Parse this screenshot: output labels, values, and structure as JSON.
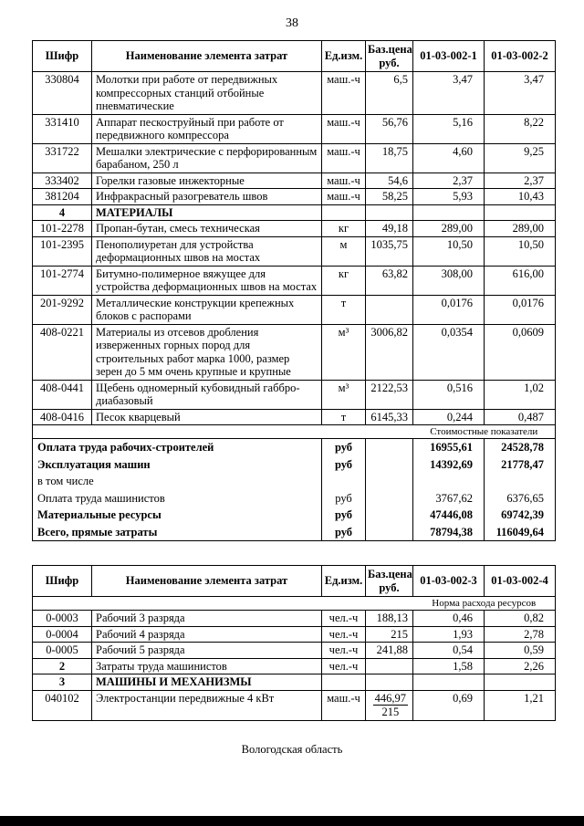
{
  "page_number": "38",
  "footer": "Вологодская область",
  "table1": {
    "headers": [
      "Шифр",
      "Наименование элемента затрат",
      "Ед.изм.",
      "Баз.цена\nруб.",
      "01-03-002-1",
      "01-03-002-2"
    ],
    "rows": [
      {
        "code": "330804",
        "name": "Молотки при работе от передвижных компрессорных станций отбойные пневматические",
        "unit": "маш.-ч",
        "price": "6,5",
        "v1": "3,47",
        "v2": "3,47"
      },
      {
        "code": "331410",
        "name": "Аппарат пескоструйный при работе от передвижного компрессора",
        "unit": "маш.-ч",
        "price": "56,76",
        "v1": "5,16",
        "v2": "8,22"
      },
      {
        "code": "331722",
        "name": "Мешалки электрические с перфорированным барабаном, 250 л",
        "unit": "маш.-ч",
        "price": "18,75",
        "v1": "4,60",
        "v2": "9,25"
      },
      {
        "code": "333402",
        "name": "Горелки газовые инжекторные",
        "unit": "маш.-ч",
        "price": "54,6",
        "v1": "2,37",
        "v2": "2,37"
      },
      {
        "code": "381204",
        "name": "Инфракрасный разогреватель швов",
        "unit": "маш.-ч",
        "price": "58,25",
        "v1": "5,93",
        "v2": "10,43"
      },
      {
        "code": "4",
        "name": "МАТЕРИАЛЫ",
        "unit": "",
        "price": "",
        "v1": "",
        "v2": "",
        "bold": true
      },
      {
        "code": "101-2278",
        "name": "Пропан-бутан, смесь техническая",
        "unit": "кг",
        "price": "49,18",
        "v1": "289,00",
        "v2": "289,00"
      },
      {
        "code": "101-2395",
        "name": "Пенополиуретан для устройства деформационных швов на мостах",
        "unit": "м",
        "price": "1035,75",
        "v1": "10,50",
        "v2": "10,50"
      },
      {
        "code": "101-2774",
        "name": "Битумно-полимерное вяжущее для устройства деформационных швов на мостах",
        "unit": "кг",
        "price": "63,82",
        "v1": "308,00",
        "v2": "616,00"
      },
      {
        "code": "201-9292",
        "name": "Металлические конструкции крепежных блоков с распорами",
        "unit": "т",
        "price": "",
        "v1": "0,0176",
        "v2": "0,0176"
      },
      {
        "code": "408-0221",
        "name": "Материалы из отсевов дробления изверженных горных пород для строительных работ марка 1000, размер зерен до 5 мм очень крупные и крупные",
        "unit": "м³",
        "price": "3006,82",
        "v1": "0,0354",
        "v2": "0,0609"
      },
      {
        "code": "408-0441",
        "name": "Щебень одномерный кубовидный габбро-диабазовый",
        "unit": "м³",
        "price": "2122,53",
        "v1": "0,516",
        "v2": "1,02"
      },
      {
        "code": "408-0416",
        "name": "Песок кварцевый",
        "unit": "т",
        "price": "6145,33",
        "v1": "0,244",
        "v2": "0,487"
      }
    ],
    "section_label": "Стоимостные показатели",
    "summary_rows": [
      {
        "name": "Оплата труда рабочих-строителей",
        "unit": "руб",
        "v1": "16955,61",
        "v2": "24528,78",
        "bold": true
      },
      {
        "name": "Эксплуатация машин",
        "unit": "руб",
        "v1": "14392,69",
        "v2": "21778,47",
        "bold": true
      },
      {
        "name": "в том числе",
        "unit": "",
        "v1": "",
        "v2": "",
        "bold": false
      },
      {
        "name": "Оплата труда машинистов",
        "unit": "руб",
        "v1": "3767,62",
        "v2": "6376,65",
        "bold": false
      },
      {
        "name": "Материальные ресурсы",
        "unit": "руб",
        "v1": "47446,08",
        "v2": "69742,39",
        "bold": true
      },
      {
        "name": "Всего, прямые затраты",
        "unit": "руб",
        "v1": "78794,38",
        "v2": "116049,64",
        "bold": true
      }
    ]
  },
  "table2": {
    "headers": [
      "Шифр",
      "Наименование элемента затрат",
      "Ед.изм.",
      "Баз.цена\nруб.",
      "01-03-002-3",
      "01-03-002-4"
    ],
    "section_label": "Норма расхода ресурсов",
    "rows": [
      {
        "code": "0-0003",
        "name": "Рабочий 3 разряда",
        "unit": "чел.-ч",
        "price": "188,13",
        "v1": "0,46",
        "v2": "0,82"
      },
      {
        "code": "0-0004",
        "name": "Рабочий 4 разряда",
        "unit": "чел.-ч",
        "price": "215",
        "v1": "1,93",
        "v2": "2,78"
      },
      {
        "code": "0-0005",
        "name": "Рабочий 5 разряда",
        "unit": "чел.-ч",
        "price": "241,88",
        "v1": "0,54",
        "v2": "0,59"
      },
      {
        "code": "2",
        "name": "Затраты труда машинистов",
        "unit": "чел.-ч",
        "price": "",
        "v1": "1,58",
        "v2": "2,26",
        "code_bold": true
      },
      {
        "code": "3",
        "name": "МАШИНЫ И МЕХАНИЗМЫ",
        "unit": "",
        "price": "",
        "v1": "",
        "v2": "",
        "bold": true
      },
      {
        "code": "040102",
        "name": "Электростанции передвижные 4 кВт",
        "unit": "маш.-ч",
        "price_num": "446,97",
        "price_den": "215",
        "v1": "0,69",
        "v2": "1,21"
      }
    ]
  }
}
